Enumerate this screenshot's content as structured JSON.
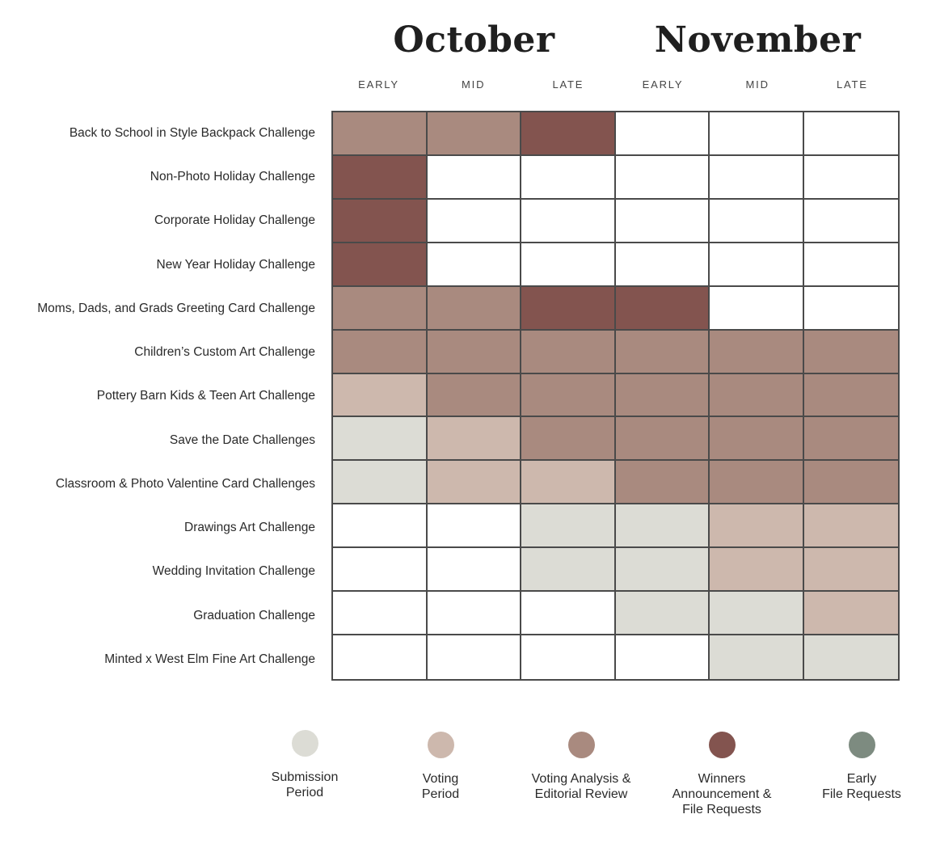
{
  "chart_data": {
    "type": "heatmap",
    "months": [
      "October",
      "November"
    ],
    "periods": [
      "EARLY",
      "MID",
      "LATE",
      "EARLY",
      "MID",
      "LATE"
    ],
    "rows": [
      "Back to School in Style Backpack Challenge",
      "Non-Photo Holiday Challenge",
      "Corporate Holiday Challenge",
      "New Year Holiday Challenge",
      "Moms, Dads, and Grads Greeting Card Challenge",
      "Children’s Custom Art Challenge",
      "Pottery Barn Kids & Teen Art Challenge",
      "Save the Date Challenges",
      "Classroom & Photo Valentine Card Challenges",
      "Drawings Art Challenge",
      "Wedding Invitation Challenge",
      "Graduation Challenge",
      "Minted x West Elm Fine Art Challenge"
    ],
    "phases": [
      {
        "key": "submission",
        "label": "Submission\nPeriod",
        "color": "#dcdcd5"
      },
      {
        "key": "voting",
        "label": "Voting\nPeriod",
        "color": "#cdb8ad"
      },
      {
        "key": "analysis",
        "label": "Voting Analysis &\nEditorial Review",
        "color": "#a98a7f"
      },
      {
        "key": "winners",
        "label": "Winners\nAnnouncement &\nFile Requests",
        "color": "#83544f"
      },
      {
        "key": "early_file",
        "label": "Early\nFile Requests",
        "color": "#7d8b80"
      }
    ],
    "cells": [
      [
        "analysis",
        "analysis",
        "winners",
        null,
        null,
        null
      ],
      [
        "winners",
        null,
        null,
        null,
        null,
        null
      ],
      [
        "winners",
        null,
        null,
        null,
        null,
        null
      ],
      [
        "winners",
        null,
        null,
        null,
        null,
        null
      ],
      [
        "analysis",
        "analysis",
        "winners",
        "winners",
        null,
        null
      ],
      [
        "analysis",
        "analysis",
        "analysis",
        "analysis",
        "analysis",
        "analysis"
      ],
      [
        "voting",
        "analysis",
        "analysis",
        "analysis",
        "analysis",
        "analysis"
      ],
      [
        "submission",
        "voting",
        "analysis",
        "analysis",
        "analysis",
        "analysis"
      ],
      [
        "submission",
        "voting",
        "voting",
        "analysis",
        "analysis",
        "analysis"
      ],
      [
        null,
        null,
        "submission",
        "submission",
        "voting",
        "voting"
      ],
      [
        null,
        null,
        "submission",
        "submission",
        "voting",
        "voting"
      ],
      [
        null,
        null,
        null,
        "submission",
        "submission",
        "voting"
      ],
      [
        null,
        null,
        null,
        null,
        "submission",
        "submission"
      ]
    ]
  }
}
